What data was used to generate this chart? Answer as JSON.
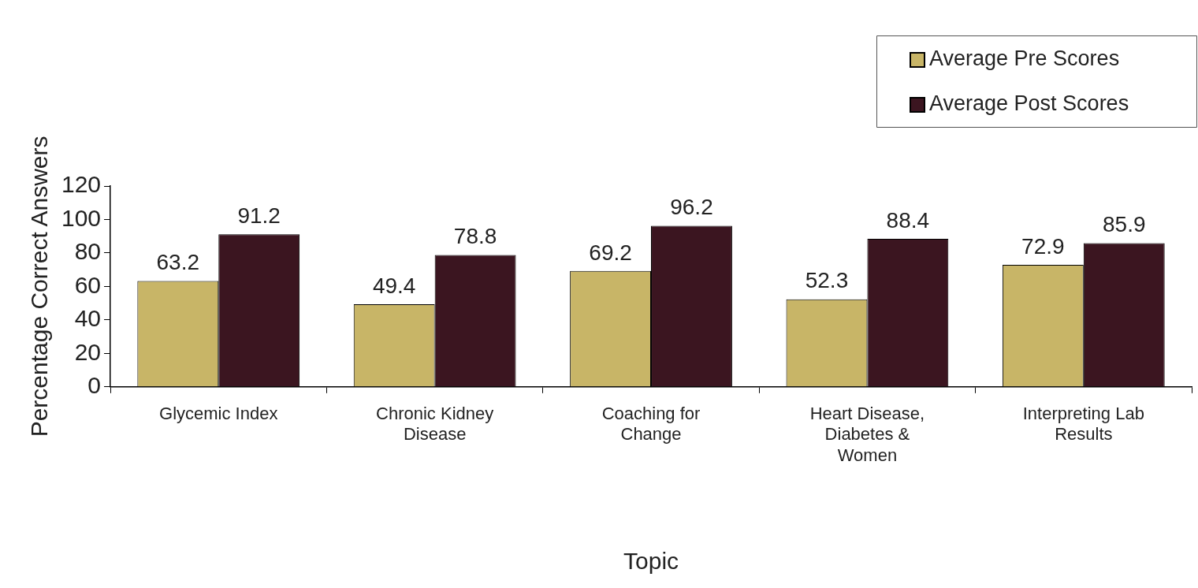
{
  "chart_data": {
    "type": "bar",
    "xlabel": "Topic",
    "ylabel": "Percentage Correct Answers",
    "categories": [
      "Glycemic Index",
      "Chronic Kidney Disease",
      "Coaching for Change",
      "Heart Disease, Diabetes & Women",
      "Interpreting Lab Results"
    ],
    "series": [
      {
        "name": "Average Pre Scores",
        "color": "#c8b567",
        "values": [
          63.2,
          49.4,
          69.2,
          52.3,
          72.9
        ]
      },
      {
        "name": "Average Post Scores",
        "color": "#3b1520",
        "values": [
          91.2,
          78.8,
          96.2,
          88.4,
          85.9
        ]
      }
    ],
    "ylim": [
      0,
      120
    ],
    "yticks": [
      0,
      20,
      40,
      60,
      80,
      100,
      120
    ],
    "grid": false,
    "legend": "top right",
    "data_labels": true
  }
}
